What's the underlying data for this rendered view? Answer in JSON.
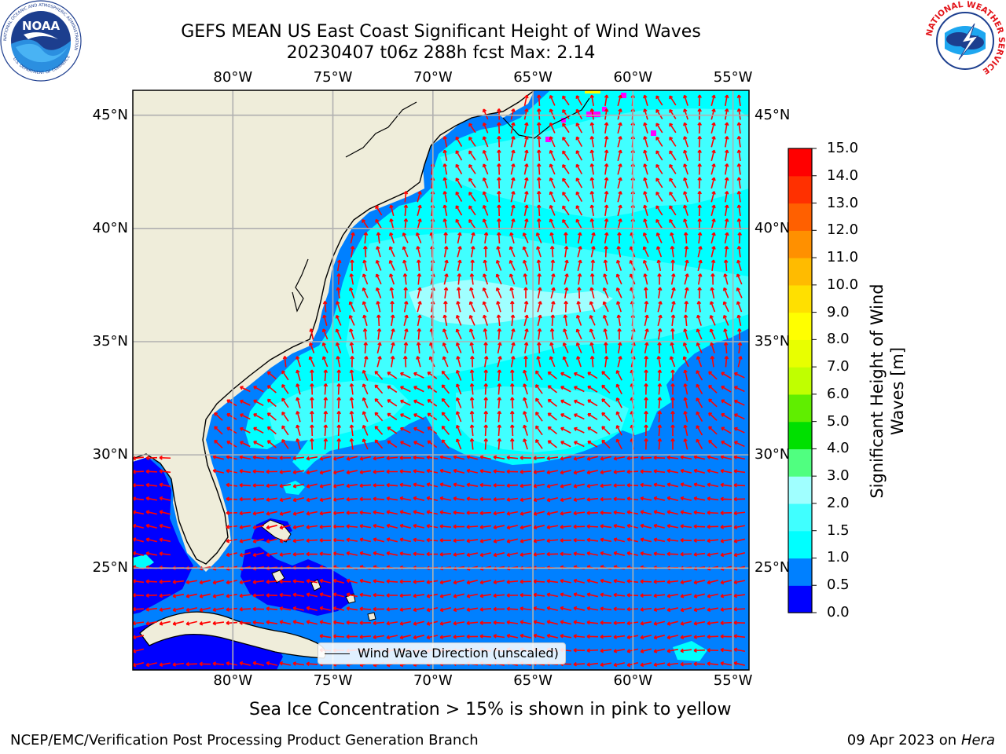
{
  "title": {
    "line1": "GEFS MEAN US East Coast Significant Height of Wind Waves",
    "line2": "20230407 t06z 288h fcst   Max: 2.14"
  },
  "map": {
    "lon_range": [
      -85,
      -54.2
    ],
    "lat_range": [
      20.5,
      46.1
    ],
    "lon_ticks": [
      {
        "value": -80,
        "label": "80°W"
      },
      {
        "value": -75,
        "label": "75°W"
      },
      {
        "value": -70,
        "label": "70°W"
      },
      {
        "value": -65,
        "label": "65°W"
      },
      {
        "value": -60,
        "label": "60°W"
      },
      {
        "value": -55,
        "label": "55°W"
      }
    ],
    "lat_ticks": [
      {
        "value": 45,
        "label": "45°N"
      },
      {
        "value": 40,
        "label": "40°N"
      },
      {
        "value": 35,
        "label": "35°N"
      },
      {
        "value": 30,
        "label": "30°N"
      },
      {
        "value": 25,
        "label": "25°N"
      }
    ],
    "gridlines": true,
    "land_color": "#efedda",
    "ocean_base_color": "#0080ff",
    "arrow_color": "#ff0000",
    "ice_color": "#ff00ff",
    "legend_label": "Wind Wave Direction (unscaled)",
    "legend_placement": "lower-center"
  },
  "colorbar": {
    "label_line1": "Significant Height of Wind",
    "label_line2": "Waves [m]",
    "levels": [
      "0.0",
      "0.5",
      "1.0",
      "1.5",
      "2.0",
      "3.0",
      "4.0",
      "5.0",
      "6.0",
      "7.0",
      "8.0",
      "9.0",
      "10.0",
      "11.0",
      "12.0",
      "13.0",
      "14.0",
      "15.0"
    ],
    "colors": [
      "#0000ff",
      "#0080ff",
      "#00ffff",
      "#40ffff",
      "#a0ffff",
      "#50ff80",
      "#00e000",
      "#60ee00",
      "#c0ff00",
      "#e8ff00",
      "#ffff00",
      "#ffe000",
      "#ffbb00",
      "#ff9000",
      "#ff6000",
      "#ff3000",
      "#ff0000"
    ]
  },
  "ice_note": "Sea Ice Concentration > 15% is shown in pink to yellow",
  "footer": {
    "left": "NCEP/EMC/Verification Post Processing Product Generation Branch",
    "right_date": "09 Apr 2023 on ",
    "right_host": "Hera"
  },
  "logos": {
    "noaa_text": "NOAA",
    "noaa_ring_top": "NATIONAL OCEANIC AND ATMOSPHERIC ADMINISTRATION",
    "noaa_ring_bottom": "U.S. DEPARTMENT OF COMMERCE",
    "nws_ring": "NATIONAL WEATHER SERVICE"
  }
}
